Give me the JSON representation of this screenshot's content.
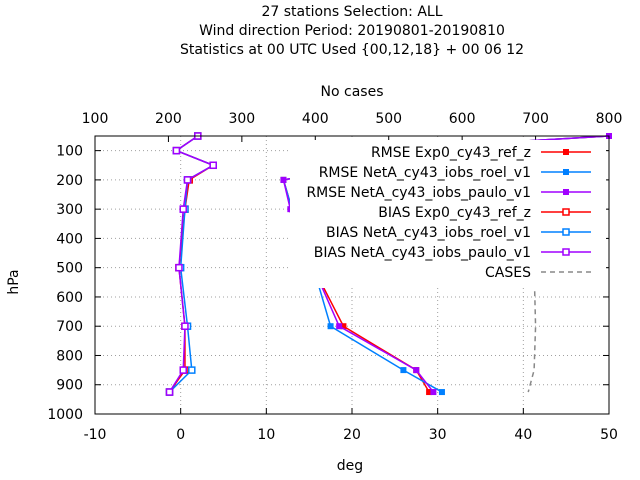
{
  "chart_data": {
    "type": "line",
    "title_lines": [
      "27 stations Selection: ALL",
      "Wind direction  Period: 20190801-20190810",
      "Statistics at 00 UTC  Used {00,12,18} + 00 06 12"
    ],
    "xlabel": "deg",
    "ylabel": "hPa",
    "x2label": "No cases",
    "xlim": [
      -10,
      50
    ],
    "ylim": [
      1000,
      50
    ],
    "x2lim": [
      100,
      800
    ],
    "xticks": [
      "-10",
      "0",
      "10",
      "20",
      "30",
      "40",
      "50"
    ],
    "yticks": [
      "100",
      "200",
      "300",
      "400",
      "500",
      "600",
      "700",
      "800",
      "900",
      "1000"
    ],
    "x2ticks": [
      "100",
      "200",
      "300",
      "400",
      "500",
      "600",
      "700",
      "800"
    ],
    "grid": true,
    "legend_position": "top-right",
    "levels": [
      50,
      100,
      150,
      200,
      300,
      500,
      700,
      850,
      925
    ],
    "series": [
      {
        "name": "RMSE Exp0_cy43_ref_z",
        "color": "#ff0000",
        "marker": "filled-square",
        "values": [
          50,
          21.5,
          22,
          12,
          13,
          15.5,
          19,
          27.5,
          29
        ]
      },
      {
        "name": "RMSE NetA_cy43_iobs_roel_v1",
        "color": "#0080ff",
        "marker": "filled-square",
        "values": [
          50,
          21.5,
          22,
          12,
          13,
          15.5,
          17.5,
          26,
          30.5
        ]
      },
      {
        "name": "RMSE NetA_cy43_iobs_paulo_v1",
        "color": "#a000ff",
        "marker": "filled-square",
        "values": [
          50,
          21.5,
          22,
          12,
          12.8,
          15.5,
          18.5,
          27.5,
          29.5
        ]
      },
      {
        "name": "BIAS Exp0_cy43_ref_z",
        "color": "#ff0000",
        "marker": "open-square",
        "values": [
          2,
          -0.5,
          3.8,
          1,
          0.5,
          -0.2,
          0.5,
          0.5,
          -1.3
        ]
      },
      {
        "name": "BIAS NetA_cy43_iobs_roel_v1",
        "color": "#0080ff",
        "marker": "open-square",
        "values": [
          2,
          -0.5,
          3.8,
          0.8,
          0.5,
          0,
          0.8,
          1.3,
          -1.3
        ]
      },
      {
        "name": "BIAS NetA_cy43_iobs_paulo_v1",
        "color": "#a000ff",
        "marker": "open-square",
        "values": [
          2,
          -0.5,
          3.8,
          0.8,
          0.3,
          -0.2,
          0.5,
          0.3,
          -1.3
        ]
      }
    ],
    "cases": {
      "name": "CASES",
      "color": "#888888",
      "levels": [
        50,
        100,
        150,
        200,
        300,
        500,
        700,
        850,
        925
      ],
      "values": [
        700,
        700,
        698,
        698,
        698,
        698,
        700,
        698,
        690
      ]
    }
  }
}
